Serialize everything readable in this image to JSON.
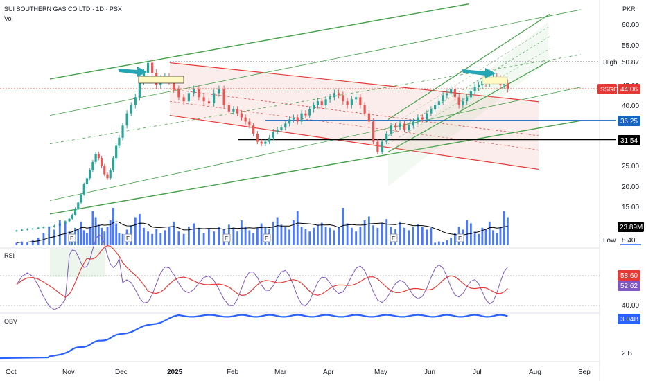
{
  "header": {
    "title": "SUI SOUTHERN GAS CO LTD · 1D · PSX",
    "vol_label": "Vol",
    "currency": "PKR"
  },
  "price_axis": {
    "ticks": [
      "60.00",
      "55.00",
      "50.00",
      "45.00",
      "40.00",
      "35.00",
      "30.00",
      "25.00",
      "20.00",
      "15.00"
    ],
    "high_label": "High",
    "high_value": "50.87",
    "low_label": "Low",
    "low_value": "8.40",
    "symbol_tag": "SSGC",
    "last_price": "44.06",
    "level_1": "36.25",
    "level_2": "31.54",
    "volume_ma": "23.89M"
  },
  "rsi": {
    "label": "RSI",
    "value_ma": "58.60",
    "value_rsi": "52.62",
    "tick": "40.00"
  },
  "obv": {
    "label": "OBV",
    "value": "3.04B",
    "tick": "2 B"
  },
  "time_axis": [
    "Oct",
    "Nov",
    "Dec",
    "2025",
    "Feb",
    "Mar",
    "Apr",
    "May",
    "Jun",
    "Jul",
    "Aug",
    "Sep"
  ],
  "earnings_marker": "E",
  "colors": {
    "up": "#26a69a",
    "down": "#ef5350",
    "volume": "#2962ff",
    "rsi": "#7e57c2",
    "rsi_ma": "#e53935",
    "obv": "#2962ff",
    "channel_green": "#43a047",
    "channel_red": "#e53935",
    "level_blue": "#1565c0",
    "arrow": "#26a6b5"
  },
  "chart_data": {
    "type": "candlestick",
    "title": "SUI SOUTHERN GAS CO LTD · 1D · PSX",
    "y_unit": "PKR",
    "ylim": [
      8,
      63
    ],
    "x_range": [
      "Oct 2024",
      "Sep 2025"
    ],
    "last_price": 44.06,
    "period_high": 50.87,
    "period_low": 8.4,
    "horizontal_levels": [
      36.25,
      31.54
    ],
    "volume_ma_last": "23.89M",
    "rsi_last": 52.62,
    "rsi_ma_last": 58.6,
    "obv_last": "3.04B",
    "earnings_months": [
      "Nov",
      "Dec",
      "Feb",
      "Mar",
      "May",
      "Jun"
    ],
    "close_series": [
      {
        "month": "Oct",
        "values": [
          9.1,
          9.3,
          9.5,
          9.6,
          9.8,
          9.9,
          10.0,
          10.3,
          10.8,
          11.4
        ]
      },
      {
        "month": "Nov",
        "values": [
          12.0,
          13.0,
          14.5,
          16.0,
          18.0,
          20.5,
          22.0,
          24.0,
          26.0,
          28.0,
          27.0,
          25.0,
          23.0,
          22.0,
          24.0,
          27.0,
          30.0,
          32.0
        ]
      },
      {
        "month": "Dec",
        "values": [
          35.0,
          38.0,
          40.0,
          42.0,
          46.0,
          48.0,
          50.5,
          48.0,
          45.0,
          46.5,
          47.0,
          46.0
        ]
      },
      {
        "month": "Jan",
        "values": [
          44.0,
          42.0,
          41.0,
          43.0,
          44.0,
          42.0,
          41.0,
          40.5,
          43.0,
          44.0,
          40.0,
          38.5
        ]
      },
      {
        "month": "Feb",
        "values": [
          39.0,
          38.0,
          37.0,
          36.0,
          35.0,
          33.0,
          31.0,
          30.5,
          31.0,
          32.0,
          33.5,
          34.0
        ]
      },
      {
        "month": "Mar",
        "values": [
          34.5,
          35.5,
          36.5,
          37.0,
          36.0,
          38.0,
          37.5,
          39.0,
          40.0,
          41.0,
          40.0,
          41.5
        ]
      },
      {
        "month": "Apr",
        "values": [
          42.0,
          43.0,
          42.5,
          41.0,
          40.0,
          41.5,
          42.0,
          40.0,
          38.0,
          36.0,
          31.0,
          28.5
        ]
      },
      {
        "month": "May",
        "values": [
          31.0,
          33.0,
          35.0,
          34.5,
          35.5,
          34.0,
          35.0,
          36.0,
          37.0,
          36.5,
          38.0
        ]
      },
      {
        "month": "Jun",
        "values": [
          39.0,
          40.0,
          41.0,
          42.5,
          43.0,
          44.0,
          42.0,
          40.0,
          41.0,
          42.0,
          43.5,
          44.5
        ]
      },
      {
        "month": "Jul",
        "values": [
          45.0,
          46.0,
          45.5,
          46.5,
          47.0,
          46.5,
          45.0,
          45.5,
          44.06
        ]
      }
    ]
  }
}
